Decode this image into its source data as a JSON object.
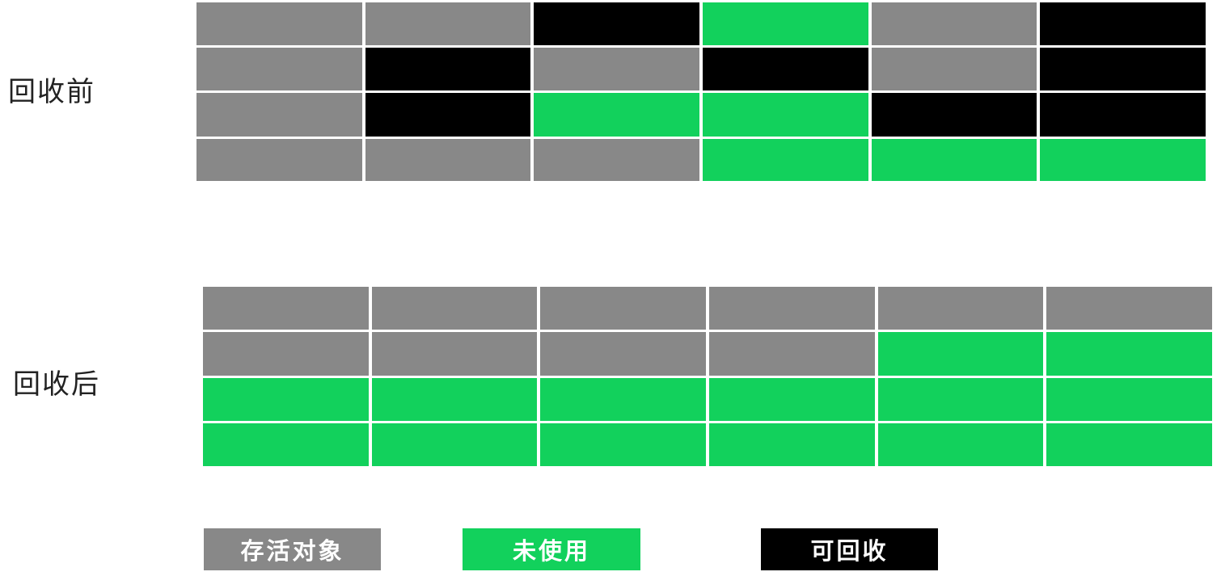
{
  "labels": {
    "before": "回收前",
    "after": "回收后"
  },
  "legend": {
    "live": "存活对象",
    "unused": "未使用",
    "reclaimable": "可回收"
  },
  "colors": {
    "live": "#888888",
    "unused": "#12d15c",
    "reclaimable": "#000000"
  },
  "before_grid": [
    [
      "live",
      "live",
      "reclaimable",
      "unused",
      "live",
      "reclaimable"
    ],
    [
      "live",
      "reclaimable",
      "live",
      "reclaimable",
      "live",
      "reclaimable"
    ],
    [
      "live",
      "reclaimable",
      "unused",
      "unused",
      "reclaimable",
      "reclaimable"
    ],
    [
      "live",
      "live",
      "live",
      "unused",
      "unused",
      "unused"
    ]
  ],
  "after_grid": [
    [
      "live",
      "live",
      "live",
      "live",
      "live",
      "live"
    ],
    [
      "live",
      "live",
      "live",
      "live",
      "unused",
      "unused"
    ],
    [
      "unused",
      "unused",
      "unused",
      "unused",
      "unused",
      "unused"
    ],
    [
      "unused",
      "unused",
      "unused",
      "unused",
      "unused",
      "unused"
    ]
  ]
}
